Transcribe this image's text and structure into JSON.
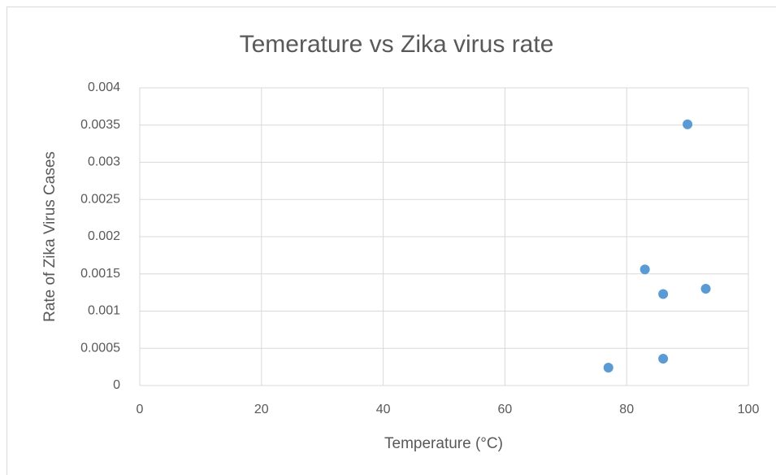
{
  "chart_data": {
    "type": "scatter",
    "title": "Temerature vs Zika virus rate",
    "x_label": "Temperature  (°C)",
    "y_label": "Rate of Zika Virus Cases",
    "series": [
      {
        "color": "#5b9bd5",
        "x": [
          77,
          83,
          86,
          86,
          90,
          93
        ],
        "values": [
          0.00024,
          0.00156,
          0.00123,
          0.00036,
          0.00351,
          0.0013
        ]
      }
    ],
    "xlim": [
      0,
      100
    ],
    "xticks": [
      0,
      20,
      40,
      60,
      80,
      100
    ],
    "ylim": [
      0,
      0.004
    ],
    "yticks": [
      0,
      0.0005,
      0.001,
      0.0015,
      0.002,
      0.0025,
      0.003,
      0.0035,
      0.004
    ],
    "grid": true
  }
}
